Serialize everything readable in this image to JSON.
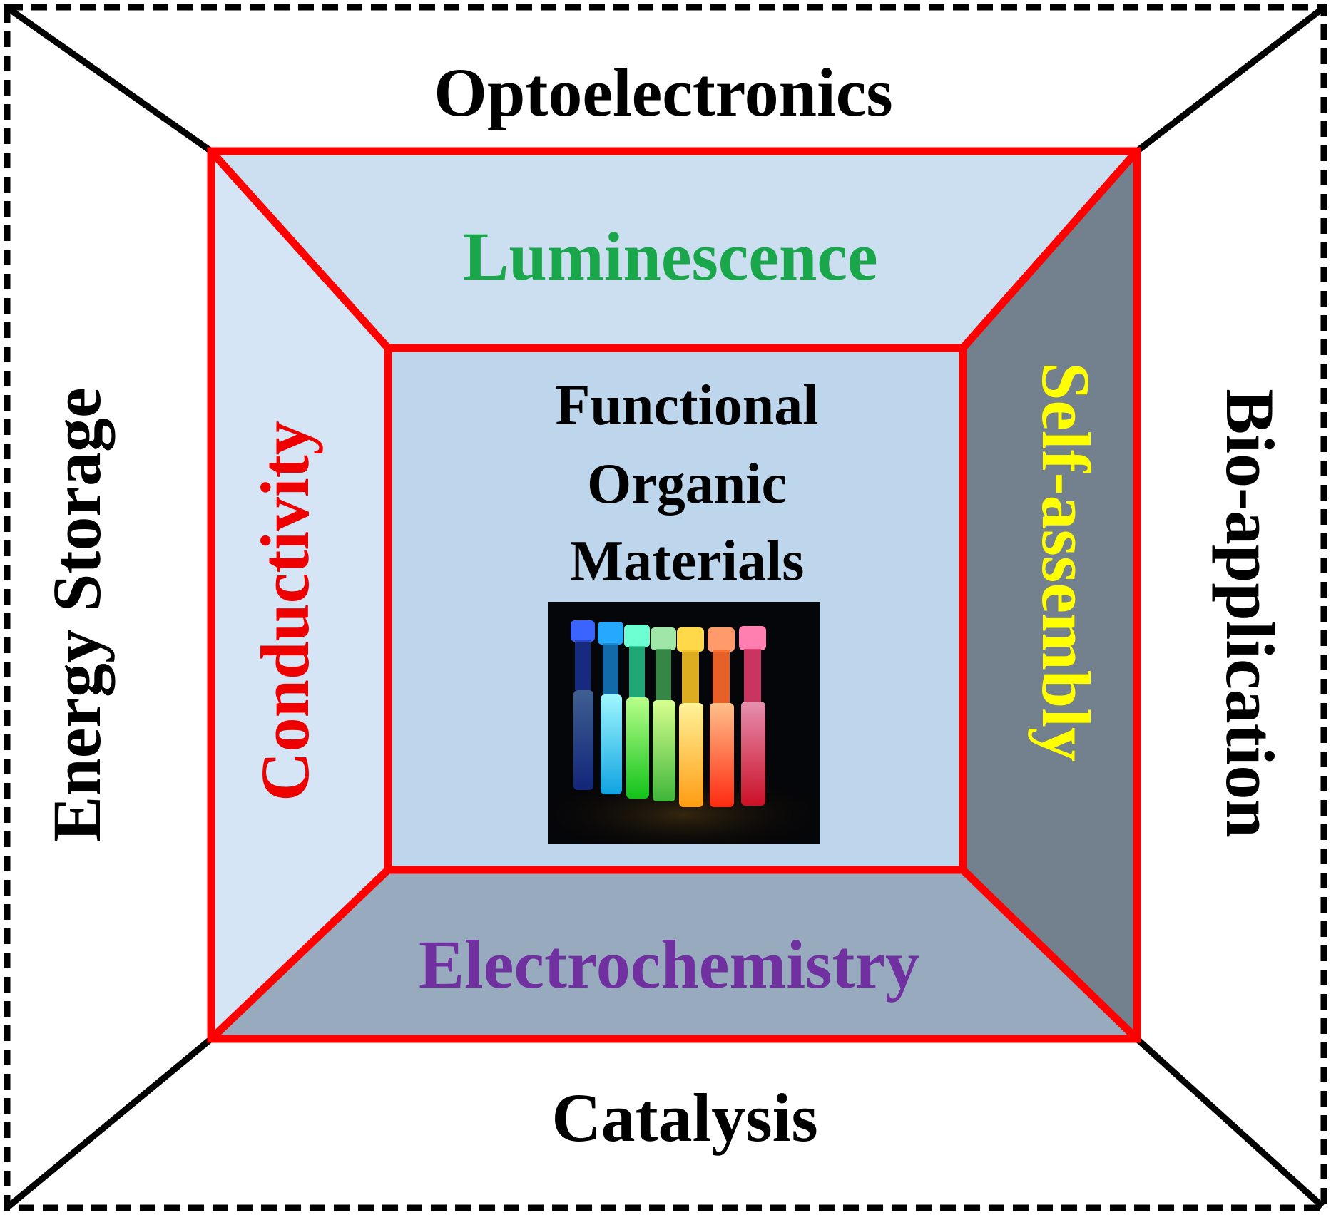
{
  "outer": {
    "top_label": "Optoelectronics",
    "bottom_label": "Catalysis",
    "left_label": "Energy Storage",
    "right_label": "Bio-application"
  },
  "middle": {
    "top_label": "Luminescence",
    "bottom_label": "Electrochemistry",
    "left_label": "Conductivity",
    "right_label": "Self-assembly"
  },
  "center": {
    "title_lines": [
      "Functional",
      "Organic",
      "Materials"
    ],
    "image_icon": "glowing-vials-photo"
  },
  "colors": {
    "frame_red": "#ff0000",
    "panel_top": "#cbdff1",
    "panel_left": "#d5e5f5",
    "panel_right": "#73808e",
    "panel_bottom": "#98abbe",
    "panel_center": "#bdd6ec",
    "luminescence": "#1aa64a",
    "conductivity": "#ee0000",
    "self_assembly": "#ffff00",
    "electrochemistry": "#7030a0",
    "outer_text": "#000000"
  }
}
